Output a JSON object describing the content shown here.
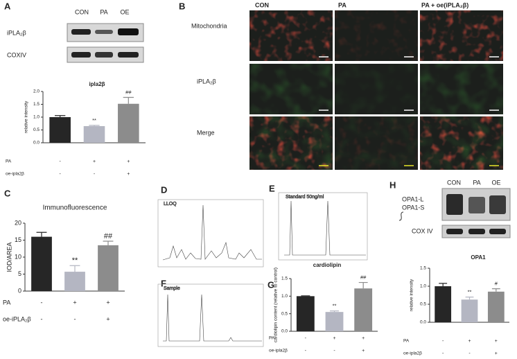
{
  "panel_labels": [
    "A",
    "B",
    "C",
    "D",
    "E",
    "F",
    "G",
    "H"
  ],
  "blot_a": {
    "lanes": [
      "CON",
      "PA",
      "OE"
    ],
    "rows": [
      "iPLA₂β",
      "COXIV"
    ]
  },
  "micro_b": {
    "columns": [
      "CON",
      "PA",
      "PA + oe(iPLA₂β)"
    ],
    "rows": [
      "Mitochondria",
      "iPLA₂β",
      "Merge"
    ]
  },
  "chromatograms": [
    "LLOQ",
    "Standard 50ng/ml",
    "Sample"
  ],
  "blot_h": {
    "lanes": [
      "CON",
      "PA",
      "OE"
    ],
    "rows": [
      "OPA1-L",
      "OPA1-S",
      "COX IV"
    ]
  },
  "chart_data": [
    {
      "type": "bar",
      "title": "ipla2β",
      "ylabel": "relative intensity",
      "values": [
        1.0,
        0.65,
        1.52
      ],
      "errors": [
        0.06,
        0.03,
        0.25
      ],
      "bar_labels": [
        null,
        "**",
        "##"
      ],
      "colors": [
        "#262626",
        "#b4b6c2",
        "#8c8c8c"
      ],
      "ylim": [
        0,
        2.0
      ],
      "yticks": [
        {
          "value": 0,
          "label": "0.0"
        },
        0.5,
        {
          "value": 1,
          "label": "1.0"
        },
        1.5,
        {
          "value": 2,
          "label": "2.0"
        }
      ],
      "treatments": [
        {
          "name": "PA",
          "signs": [
            "-",
            "+",
            "+"
          ]
        },
        {
          "name": "oe-ipla2β",
          "signs": [
            "-",
            "-",
            "+"
          ]
        }
      ]
    },
    {
      "type": "bar",
      "title": "Immunofluorescence",
      "ylabel": "IOD/AREA",
      "values": [
        16,
        5.7,
        13.5
      ],
      "errors": [
        1.3,
        1.8,
        1.2
      ],
      "bar_labels": [
        null,
        "**",
        "##"
      ],
      "colors": [
        "#262626",
        "#b4b6c2",
        "#8c8c8c"
      ],
      "ylim": [
        0,
        20
      ],
      "yticks": [
        0,
        5,
        10,
        15,
        20
      ],
      "treatments": [
        {
          "name": "PA",
          "signs": [
            "-",
            "+",
            "+"
          ]
        },
        {
          "name": "oe-iPLA₂β",
          "signs": [
            "-",
            "-",
            "+"
          ]
        }
      ]
    },
    {
      "type": "bar",
      "title": "cardiolipin",
      "ylabel": "cardiolipin content (relative to control)",
      "values": [
        1.0,
        0.55,
        1.22
      ],
      "errors": [
        0.01,
        0.03,
        0.17
      ],
      "bar_labels": [
        null,
        "**",
        "##"
      ],
      "colors": [
        "#262626",
        "#b4b6c2",
        "#8c8c8c"
      ],
      "ylim": [
        0,
        1.5
      ],
      "yticks": [
        {
          "value": 0,
          "label": "0.0"
        },
        0.5,
        {
          "value": 1,
          "label": "1.0"
        },
        1.5
      ],
      "treatments": [
        {
          "name": "PA",
          "signs": [
            "-",
            "+",
            "+"
          ]
        },
        {
          "name": "oe-ipla2β",
          "signs": [
            "-",
            "-",
            "+"
          ]
        }
      ]
    },
    {
      "type": "bar",
      "title": "OPA1",
      "ylabel": "relative intensity",
      "values": [
        1.0,
        0.63,
        0.85
      ],
      "errors": [
        0.08,
        0.07,
        0.08
      ],
      "bar_labels": [
        null,
        "**",
        "#"
      ],
      "colors": [
        "#262626",
        "#b4b6c2",
        "#8c8c8c"
      ],
      "ylim": [
        0,
        1.5
      ],
      "yticks": [
        {
          "value": 0,
          "label": "0.0"
        },
        0.5,
        {
          "value": 1,
          "label": "1.0"
        },
        1.5
      ],
      "treatments": [
        {
          "name": "PA",
          "signs": [
            "-",
            "+",
            "+"
          ]
        },
        {
          "name": "oe-ipla2β",
          "signs": [
            "-",
            "-",
            "+"
          ]
        }
      ]
    }
  ]
}
